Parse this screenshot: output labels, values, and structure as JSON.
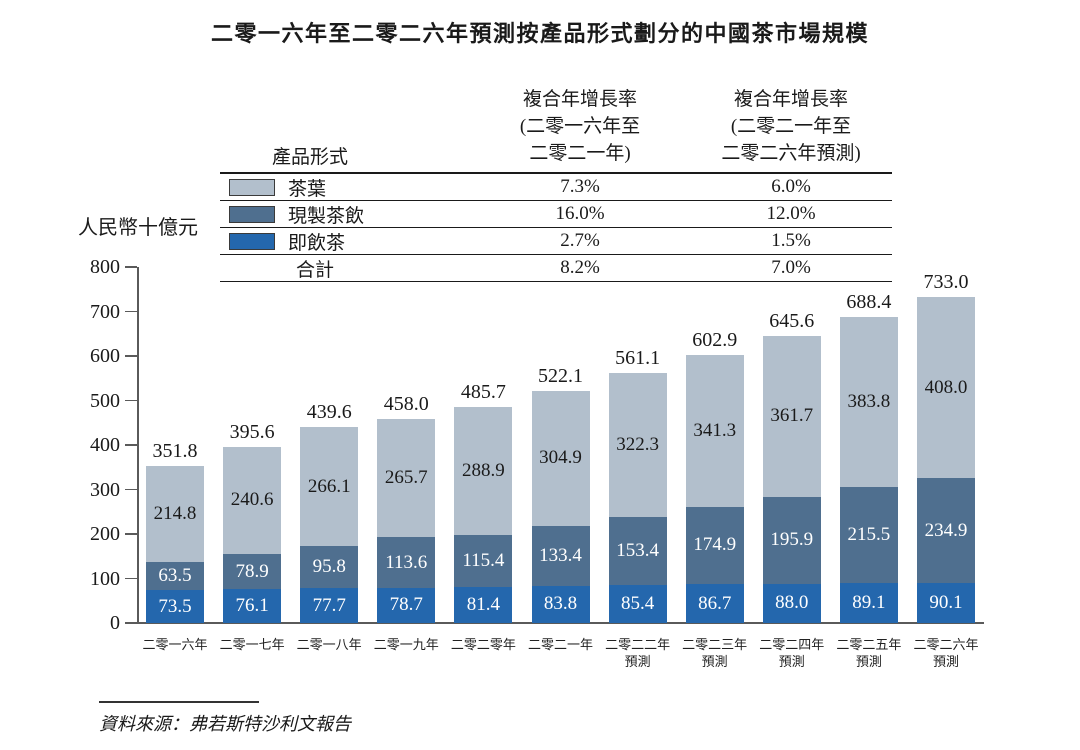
{
  "title": "二零一六年至二零二六年預測按產品形式劃分的中國茶市場規模",
  "unit_label": "人民幣十億元",
  "colors": {
    "tea_leaves": "#b2bfcc",
    "freshly_made_tea": "#4f6f8f",
    "rtd_tea": "#2467ad",
    "axis": "#5a5a5a",
    "text": "#1a1a1a"
  },
  "legend_table": {
    "col_header": "產品形式",
    "cagr1_header": [
      "複合年增長率",
      "(二零一六年至",
      "二零二一年)"
    ],
    "cagr2_header": [
      "複合年增長率",
      "(二零二一年至",
      "二零二六年預測)"
    ],
    "rows": [
      {
        "key": "tea_leaves",
        "label": "茶葉",
        "cagr1": "7.3%",
        "cagr2": "6.0%"
      },
      {
        "key": "freshly_made_tea",
        "label": "現製茶飲",
        "cagr1": "16.0%",
        "cagr2": "12.0%"
      },
      {
        "key": "rtd_tea",
        "label": "即飲茶",
        "cagr1": "2.7%",
        "cagr2": "1.5%"
      }
    ],
    "total_row": {
      "label": "合計",
      "cagr1": "8.2%",
      "cagr2": "7.0%"
    }
  },
  "chart_data": {
    "type": "bar",
    "stacked": true,
    "title": "二零一六年至二零二六年預測按產品形式劃分的中國茶市場規模",
    "ylabel": "人民幣十億元",
    "ylim": [
      0,
      800
    ],
    "ytick_step": 100,
    "grid": false,
    "legend_position": "table-top",
    "categories": [
      [
        "二零一六年"
      ],
      [
        "二零一七年"
      ],
      [
        "二零一八年"
      ],
      [
        "二零一九年"
      ],
      [
        "二零二零年"
      ],
      [
        "二零二一年"
      ],
      [
        "二零二二年",
        "預測"
      ],
      [
        "二零二三年",
        "預測"
      ],
      [
        "二零二四年",
        "預測"
      ],
      [
        "二零二五年",
        "預測"
      ],
      [
        "二零二六年",
        "預測"
      ]
    ],
    "series": [
      {
        "name": "即飲茶",
        "color_key": "rtd_tea",
        "label_color": "#ffffff",
        "values": [
          73.5,
          76.1,
          77.7,
          78.7,
          81.4,
          83.8,
          85.4,
          86.7,
          88.0,
          89.1,
          90.1
        ]
      },
      {
        "name": "現製茶飲",
        "color_key": "freshly_made_tea",
        "label_color": "#ffffff",
        "values": [
          63.5,
          78.9,
          95.8,
          113.6,
          115.4,
          133.4,
          153.4,
          174.9,
          195.9,
          215.5,
          234.9
        ]
      },
      {
        "name": "茶葉",
        "color_key": "tea_leaves",
        "label_color": "#1a1a1a",
        "values": [
          214.8,
          240.6,
          266.1,
          265.7,
          288.9,
          304.9,
          322.3,
          341.3,
          361.7,
          383.8,
          408.0
        ]
      }
    ],
    "totals": [
      351.8,
      395.6,
      439.6,
      458.0,
      485.7,
      522.1,
      561.1,
      602.9,
      645.6,
      688.4,
      733.0
    ]
  },
  "source": "資料來源：弗若斯特沙利文報告"
}
